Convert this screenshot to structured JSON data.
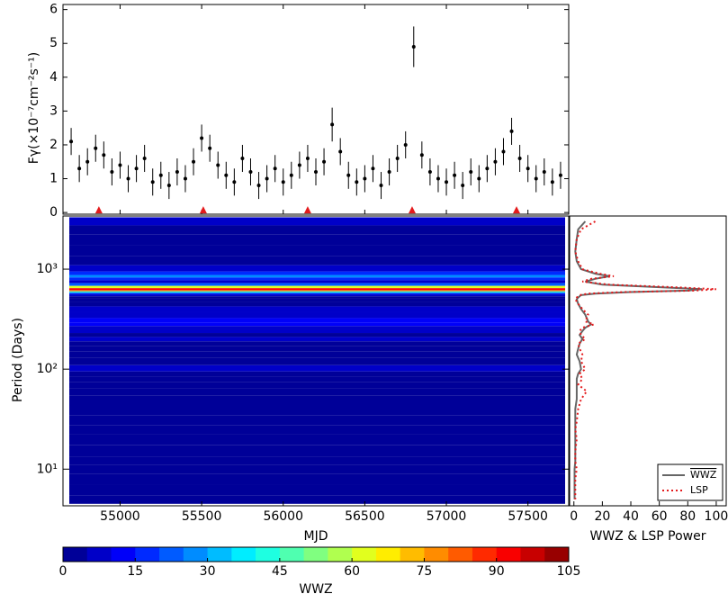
{
  "chart_data": [
    {
      "type": "errorbar",
      "ylabel": "Fγ(×10⁻⁷cm⁻²s⁻¹)",
      "ylim": [
        -0.05,
        6.15
      ],
      "yticks": [
        0,
        1,
        2,
        3,
        4,
        5,
        6
      ],
      "color": "#000000",
      "marker_color": "#e41a1c",
      "x": [
        54700,
        54750,
        54800,
        54850,
        54900,
        54950,
        55000,
        55050,
        55100,
        55150,
        55200,
        55250,
        55300,
        55350,
        55400,
        55450,
        55500,
        55550,
        55600,
        55650,
        55700,
        55750,
        55800,
        55850,
        55900,
        55950,
        56000,
        56050,
        56100,
        56150,
        56200,
        56250,
        56300,
        56350,
        56400,
        56450,
        56500,
        56550,
        56600,
        56650,
        56700,
        56750,
        56800,
        56850,
        56900,
        56950,
        57000,
        57050,
        57100,
        57150,
        57200,
        57250,
        57300,
        57350,
        57400,
        57450,
        57500,
        57550,
        57600,
        57650,
        57700
      ],
      "values": [
        2.1,
        1.3,
        1.5,
        1.9,
        1.7,
        1.2,
        1.4,
        1.0,
        1.3,
        1.6,
        0.9,
        1.1,
        0.8,
        1.2,
        1.0,
        1.5,
        2.2,
        1.9,
        1.4,
        1.1,
        0.9,
        1.6,
        1.2,
        0.8,
        1.0,
        1.3,
        0.9,
        1.1,
        1.4,
        1.6,
        1.2,
        1.5,
        2.6,
        1.8,
        1.1,
        0.9,
        1.0,
        1.3,
        0.8,
        1.2,
        1.6,
        2.0,
        4.9,
        1.7,
        1.2,
        1.0,
        0.9,
        1.1,
        0.8,
        1.2,
        1.0,
        1.3,
        1.5,
        1.8,
        2.4,
        1.6,
        1.3,
        1.0,
        1.2,
        0.9,
        1.1
      ],
      "errors": [
        0.4,
        0.4,
        0.4,
        0.4,
        0.4,
        0.4,
        0.4,
        0.4,
        0.4,
        0.4,
        0.4,
        0.4,
        0.4,
        0.4,
        0.4,
        0.4,
        0.4,
        0.4,
        0.4,
        0.4,
        0.4,
        0.4,
        0.4,
        0.4,
        0.4,
        0.4,
        0.4,
        0.4,
        0.4,
        0.4,
        0.4,
        0.4,
        0.5,
        0.4,
        0.4,
        0.4,
        0.4,
        0.4,
        0.4,
        0.4,
        0.4,
        0.4,
        0.6,
        0.4,
        0.4,
        0.4,
        0.4,
        0.4,
        0.4,
        0.4,
        0.4,
        0.4,
        0.4,
        0.4,
        0.4,
        0.4,
        0.4,
        0.4,
        0.4,
        0.4,
        0.4
      ],
      "markers": [
        54870,
        55510,
        56150,
        56790,
        57430
      ]
    },
    {
      "type": "heatmap",
      "xlabel": "MJD",
      "xlim": [
        54650,
        57750
      ],
      "xticks": [
        55000,
        55500,
        56000,
        56500,
        57000,
        57500
      ],
      "ylabel": "Period (Days)",
      "log_y": true,
      "ylim": [
        4.3,
        3400
      ],
      "yticks": [
        {
          "value": 10,
          "label": "10¹"
        },
        {
          "value": 100,
          "label": "10²"
        },
        {
          "value": 1000,
          "label": "10³"
        }
      ],
      "y": [
        3000,
        2500,
        2000,
        1500,
        1200,
        1000,
        900,
        850,
        800,
        750,
        700,
        660,
        630,
        610,
        590,
        570,
        550,
        520,
        500,
        450,
        400,
        350,
        300,
        280,
        260,
        240,
        220,
        200,
        180,
        160,
        140,
        120,
        100,
        90,
        80,
        70,
        60,
        50,
        40,
        30,
        25,
        20,
        15,
        12,
        10,
        8,
        6,
        5
      ],
      "series": [
        {
          "name": "WWZ",
          "color": "#666666",
          "values": [
            8,
            3,
            2,
            1,
            2,
            5,
            15,
            25,
            15,
            8,
            20,
            60,
            90,
            80,
            40,
            15,
            5,
            3,
            2,
            3,
            5,
            8,
            10,
            12,
            8,
            6,
            4,
            6,
            4,
            3,
            2,
            4,
            5,
            3,
            2,
            2,
            2,
            2,
            1,
            1,
            1,
            1,
            1,
            1,
            0.5,
            0.5,
            0.5,
            0.5
          ]
        },
        {
          "name": "LSP",
          "color": "#e41a1c",
          "values": [
            15,
            5,
            2,
            1,
            3,
            6,
            18,
            28,
            12,
            6,
            25,
            70,
            100,
            85,
            35,
            10,
            4,
            2,
            1,
            3,
            6,
            10,
            8,
            14,
            6,
            4,
            5,
            8,
            3,
            4,
            6,
            5,
            8,
            4,
            6,
            3,
            9,
            5,
            3,
            2,
            1,
            2,
            1,
            1,
            2,
            1,
            1,
            1
          ]
        }
      ],
      "power_xlabel": "WWZ & LSP Power",
      "power_xlim": [
        -3,
        107
      ],
      "power_xticks": [
        0,
        20,
        40,
        60,
        80,
        100
      ],
      "legend": "lower right",
      "colorbar": {
        "label": "WWZ",
        "lim": [
          0,
          105
        ],
        "ticks": [
          0,
          15,
          30,
          45,
          60,
          75,
          90,
          105
        ]
      }
    }
  ]
}
